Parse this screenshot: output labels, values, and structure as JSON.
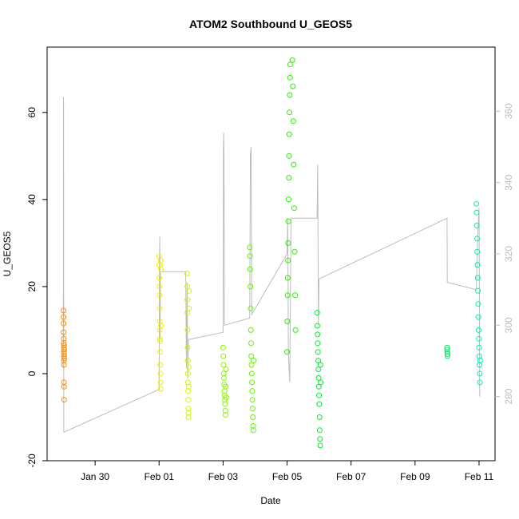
{
  "chart_data": {
    "type": "scatter",
    "title": "ATOM2 Southbound U_GEOS5",
    "xlabel": "Date",
    "ylabel": "U_GEOS5",
    "x_type": "date",
    "xlim": [
      "2017-01-28T12:00",
      "2017-02-11T12:00"
    ],
    "ylim": [
      -20,
      75
    ],
    "y2lim": [
      262,
      378
    ],
    "x_ticks": [
      {
        "date": "2017-01-30T00:00",
        "label": "Jan 30"
      },
      {
        "date": "2017-02-01T00:00",
        "label": "Feb 01"
      },
      {
        "date": "2017-02-03T00:00",
        "label": "Feb 03"
      },
      {
        "date": "2017-02-05T00:00",
        "label": "Feb 05"
      },
      {
        "date": "2017-02-07T00:00",
        "label": "Feb 07"
      },
      {
        "date": "2017-02-09T00:00",
        "label": "Feb 09"
      },
      {
        "date": "2017-02-11T00:00",
        "label": "Feb 11"
      }
    ],
    "y_ticks": [
      -20,
      0,
      20,
      40,
      60
    ],
    "y2_ticks": [
      280,
      300,
      320,
      340,
      360
    ],
    "grid": false,
    "series": [
      {
        "color": "#ff8c00",
        "values": [
          {
            "x": "2017-01-29T00:18",
            "y": 14.5
          },
          {
            "x": "2017-01-29T00:20",
            "y": 13.0
          },
          {
            "x": "2017-01-29T00:22",
            "y": 11.5
          },
          {
            "x": "2017-01-29T00:24",
            "y": 9.5
          },
          {
            "x": "2017-01-29T00:26",
            "y": 8.0
          },
          {
            "x": "2017-01-29T00:28",
            "y": 7.0
          },
          {
            "x": "2017-01-29T00:30",
            "y": 6.0
          },
          {
            "x": "2017-01-29T00:32",
            "y": 5.0
          },
          {
            "x": "2017-01-29T00:34",
            "y": 4.0
          },
          {
            "x": "2017-01-29T00:36",
            "y": 3.0
          },
          {
            "x": "2017-01-29T00:38",
            "y": 2.0
          },
          {
            "x": "2017-01-29T00:40",
            "y": -2.0
          },
          {
            "x": "2017-01-29T00:42",
            "y": -3.0
          },
          {
            "x": "2017-01-29T00:44",
            "y": -6.0
          },
          {
            "x": "2017-01-29T00:46",
            "y": 6.5
          },
          {
            "x": "2017-01-29T00:48",
            "y": 5.5
          },
          {
            "x": "2017-01-29T00:50",
            "y": 4.5
          },
          {
            "x": "2017-01-29T00:52",
            "y": 3.5
          }
        ]
      },
      {
        "color": "#f0f000",
        "values": [
          {
            "x": "2017-02-01T00:00",
            "y": 27.0
          },
          {
            "x": "2017-02-01T00:05",
            "y": 25.0
          },
          {
            "x": "2017-02-01T00:10",
            "y": 22.0
          },
          {
            "x": "2017-02-01T00:15",
            "y": 20.0
          },
          {
            "x": "2017-02-01T00:20",
            "y": 18.0
          },
          {
            "x": "2017-02-01T00:25",
            "y": 15.0
          },
          {
            "x": "2017-02-01T00:30",
            "y": 12.0
          },
          {
            "x": "2017-02-01T00:35",
            "y": 10.0
          },
          {
            "x": "2017-02-01T00:40",
            "y": 8.0
          },
          {
            "x": "2017-02-01T00:45",
            "y": 7.5
          },
          {
            "x": "2017-02-01T00:50",
            "y": 5.0
          },
          {
            "x": "2017-02-01T00:55",
            "y": 2.0
          },
          {
            "x": "2017-02-01T01:00",
            "y": 0.0
          },
          {
            "x": "2017-02-01T01:05",
            "y": -2.0
          },
          {
            "x": "2017-02-01T01:10",
            "y": -3.5
          },
          {
            "x": "2017-02-01T01:15",
            "y": 26.0
          },
          {
            "x": "2017-02-01T01:20",
            "y": 24.0
          },
          {
            "x": "2017-02-01T01:25",
            "y": 11.0
          }
        ]
      },
      {
        "color": "#d4f500",
        "values": [
          {
            "x": "2017-02-01T21:00",
            "y": 23.0
          },
          {
            "x": "2017-02-01T21:05",
            "y": 20.0
          },
          {
            "x": "2017-02-01T21:10",
            "y": 17.0
          },
          {
            "x": "2017-02-01T21:15",
            "y": 14.0
          },
          {
            "x": "2017-02-01T21:20",
            "y": 10.0
          },
          {
            "x": "2017-02-01T21:25",
            "y": 6.0
          },
          {
            "x": "2017-02-01T21:30",
            "y": 3.0
          },
          {
            "x": "2017-02-01T21:35",
            "y": 0.0
          },
          {
            "x": "2017-02-01T21:40",
            "y": -2.0
          },
          {
            "x": "2017-02-01T21:45",
            "y": -4.0
          },
          {
            "x": "2017-02-01T21:50",
            "y": -6.0
          },
          {
            "x": "2017-02-01T21:55",
            "y": -8.0
          },
          {
            "x": "2017-02-01T22:00",
            "y": -9.0
          },
          {
            "x": "2017-02-01T22:05",
            "y": -10.0
          },
          {
            "x": "2017-02-01T22:10",
            "y": 1.5
          },
          {
            "x": "2017-02-01T22:15",
            "y": -3.0
          },
          {
            "x": "2017-02-01T22:20",
            "y": 19.0
          },
          {
            "x": "2017-02-01T22:25",
            "y": 15.0
          }
        ]
      },
      {
        "color": "#8cf500",
        "values": [
          {
            "x": "2017-02-03T00:00",
            "y": 6.0
          },
          {
            "x": "2017-02-03T00:10",
            "y": 4.0
          },
          {
            "x": "2017-02-03T00:20",
            "y": 2.0
          },
          {
            "x": "2017-02-03T00:30",
            "y": 0.0
          },
          {
            "x": "2017-02-03T00:40",
            "y": -1.0
          },
          {
            "x": "2017-02-03T00:50",
            "y": -2.5
          },
          {
            "x": "2017-02-03T01:00",
            "y": -4.0
          },
          {
            "x": "2017-02-03T01:10",
            "y": -5.0
          },
          {
            "x": "2017-02-03T01:20",
            "y": -6.0
          },
          {
            "x": "2017-02-03T01:30",
            "y": -7.0
          },
          {
            "x": "2017-02-03T01:40",
            "y": -8.5
          },
          {
            "x": "2017-02-03T01:50",
            "y": -9.5
          },
          {
            "x": "2017-02-03T02:00",
            "y": -3.0
          },
          {
            "x": "2017-02-03T02:10",
            "y": 1.0
          },
          {
            "x": "2017-02-03T02:20",
            "y": -5.5
          }
        ]
      },
      {
        "color": "#64f500",
        "values": [
          {
            "x": "2017-02-03T20:00",
            "y": 29.0
          },
          {
            "x": "2017-02-03T20:10",
            "y": 27.0
          },
          {
            "x": "2017-02-03T20:20",
            "y": 24.0
          },
          {
            "x": "2017-02-03T20:30",
            "y": 20.0
          },
          {
            "x": "2017-02-03T20:40",
            "y": 15.0
          },
          {
            "x": "2017-02-03T20:50",
            "y": 10.0
          },
          {
            "x": "2017-02-03T21:00",
            "y": 7.0
          },
          {
            "x": "2017-02-03T21:10",
            "y": 4.0
          },
          {
            "x": "2017-02-03T21:20",
            "y": 2.0
          },
          {
            "x": "2017-02-03T21:30",
            "y": 0.0
          },
          {
            "x": "2017-02-03T21:40",
            "y": -2.0
          },
          {
            "x": "2017-02-03T21:50",
            "y": -4.0
          },
          {
            "x": "2017-02-03T22:00",
            "y": -6.0
          },
          {
            "x": "2017-02-03T22:10",
            "y": -8.0
          },
          {
            "x": "2017-02-03T22:20",
            "y": -10.0
          },
          {
            "x": "2017-02-03T22:30",
            "y": -12.0
          },
          {
            "x": "2017-02-03T22:40",
            "y": -13.0
          },
          {
            "x": "2017-02-03T22:50",
            "y": 3.0
          }
        ]
      },
      {
        "color": "#2cf000",
        "values": [
          {
            "x": "2017-02-05T00:00",
            "y": 5.0
          },
          {
            "x": "2017-02-05T00:10",
            "y": 12.0
          },
          {
            "x": "2017-02-05T00:20",
            "y": 18.0
          },
          {
            "x": "2017-02-05T00:30",
            "y": 22.0
          },
          {
            "x": "2017-02-05T00:40",
            "y": 26.0
          },
          {
            "x": "2017-02-05T00:50",
            "y": 30.0
          },
          {
            "x": "2017-02-05T01:00",
            "y": 35.0
          },
          {
            "x": "2017-02-05T01:10",
            "y": 40.0
          },
          {
            "x": "2017-02-05T01:20",
            "y": 45.0
          },
          {
            "x": "2017-02-05T01:30",
            "y": 50.0
          },
          {
            "x": "2017-02-05T01:40",
            "y": 55.0
          },
          {
            "x": "2017-02-05T01:50",
            "y": 60.0
          },
          {
            "x": "2017-02-05T02:00",
            "y": 64.0
          },
          {
            "x": "2017-02-05T02:10",
            "y": 68.0
          },
          {
            "x": "2017-02-05T02:20",
            "y": 71.0
          },
          {
            "x": "2017-02-05T04:00",
            "y": 72.0
          },
          {
            "x": "2017-02-05T04:20",
            "y": 66.0
          },
          {
            "x": "2017-02-05T04:40",
            "y": 58.0
          },
          {
            "x": "2017-02-05T05:00",
            "y": 48.0
          },
          {
            "x": "2017-02-05T05:20",
            "y": 38.0
          },
          {
            "x": "2017-02-05T05:40",
            "y": 28.0
          },
          {
            "x": "2017-02-05T06:00",
            "y": 18.0
          },
          {
            "x": "2017-02-05T06:20",
            "y": 10.0
          }
        ]
      },
      {
        "color": "#00f028",
        "values": [
          {
            "x": "2017-02-05T22:30",
            "y": 14.0
          },
          {
            "x": "2017-02-05T22:40",
            "y": 11.0
          },
          {
            "x": "2017-02-05T22:50",
            "y": 9.0
          },
          {
            "x": "2017-02-05T23:00",
            "y": 7.0
          },
          {
            "x": "2017-02-05T23:10",
            "y": 5.0
          },
          {
            "x": "2017-02-05T23:20",
            "y": 3.0
          },
          {
            "x": "2017-02-05T23:30",
            "y": 1.0
          },
          {
            "x": "2017-02-05T23:40",
            "y": -1.0
          },
          {
            "x": "2017-02-05T23:50",
            "y": -3.0
          },
          {
            "x": "2017-02-06T00:00",
            "y": -5.0
          },
          {
            "x": "2017-02-06T00:10",
            "y": -7.0
          },
          {
            "x": "2017-02-06T00:20",
            "y": -10.0
          },
          {
            "x": "2017-02-06T00:30",
            "y": -13.0
          },
          {
            "x": "2017-02-06T00:40",
            "y": -15.0
          },
          {
            "x": "2017-02-06T00:50",
            "y": -16.5
          },
          {
            "x": "2017-02-06T01:00",
            "y": 2.0
          },
          {
            "x": "2017-02-06T01:10",
            "y": -2.0
          }
        ]
      },
      {
        "color": "#00f064",
        "values": [
          {
            "x": "2017-02-10T00:00",
            "y": 6.0
          },
          {
            "x": "2017-02-10T00:05",
            "y": 5.5
          },
          {
            "x": "2017-02-10T00:10",
            "y": 5.0
          },
          {
            "x": "2017-02-10T00:15",
            "y": 4.5
          },
          {
            "x": "2017-02-10T00:20",
            "y": 4.0
          }
        ]
      },
      {
        "color": "#00f0b4",
        "values": [
          {
            "x": "2017-02-10T22:00",
            "y": 39.0
          },
          {
            "x": "2017-02-10T22:10",
            "y": 37.0
          },
          {
            "x": "2017-02-10T22:20",
            "y": 34.0
          },
          {
            "x": "2017-02-10T22:30",
            "y": 31.0
          },
          {
            "x": "2017-02-10T22:40",
            "y": 28.0
          },
          {
            "x": "2017-02-10T22:50",
            "y": 25.0
          },
          {
            "x": "2017-02-10T23:00",
            "y": 22.0
          },
          {
            "x": "2017-02-10T23:10",
            "y": 19.0
          },
          {
            "x": "2017-02-10T23:20",
            "y": 16.0
          },
          {
            "x": "2017-02-10T23:30",
            "y": 13.0
          },
          {
            "x": "2017-02-10T23:40",
            "y": 10.0
          },
          {
            "x": "2017-02-10T23:50",
            "y": 8.0
          },
          {
            "x": "2017-02-11T00:00",
            "y": 6.0
          },
          {
            "x": "2017-02-11T00:10",
            "y": 4.0
          },
          {
            "x": "2017-02-11T00:20",
            "y": 2.0
          },
          {
            "x": "2017-02-11T00:30",
            "y": 0.0
          },
          {
            "x": "2017-02-11T00:40",
            "y": -2.0
          },
          {
            "x": "2017-02-11T00:50",
            "y": 3.0
          }
        ]
      }
    ],
    "secondary_line": {
      "color": "#bdbdbd",
      "values": [
        {
          "x": "2017-01-29T00:10",
          "y2": 288
        },
        {
          "x": "2017-01-29T00:15",
          "y2": 364
        },
        {
          "x": "2017-01-29T00:20",
          "y2": 360
        },
        {
          "x": "2017-01-29T00:30",
          "y2": 270
        },
        {
          "x": "2017-02-01T00:00",
          "y2": 282
        },
        {
          "x": "2017-02-01T00:15",
          "y2": 318
        },
        {
          "x": "2017-02-01T00:30",
          "y2": 325
        },
        {
          "x": "2017-02-01T00:45",
          "y2": 296
        },
        {
          "x": "2017-02-01T01:00",
          "y2": 315
        },
        {
          "x": "2017-02-01T20:00",
          "y2": 315
        },
        {
          "x": "2017-02-01T20:30",
          "y2": 288
        },
        {
          "x": "2017-02-01T21:00",
          "y2": 312
        },
        {
          "x": "2017-02-01T21:30",
          "y2": 285
        },
        {
          "x": "2017-02-01T22:00",
          "y2": 296
        },
        {
          "x": "2017-02-03T00:00",
          "y2": 298
        },
        {
          "x": "2017-02-03T00:15",
          "y2": 350
        },
        {
          "x": "2017-02-03T00:30",
          "y2": 354
        },
        {
          "x": "2017-02-03T00:45",
          "y2": 344
        },
        {
          "x": "2017-02-03T01:00",
          "y2": 300
        },
        {
          "x": "2017-02-03T20:00",
          "y2": 302
        },
        {
          "x": "2017-02-03T20:30",
          "y2": 348
        },
        {
          "x": "2017-02-03T21:00",
          "y2": 350
        },
        {
          "x": "2017-02-03T21:30",
          "y2": 303
        },
        {
          "x": "2017-02-05T00:00",
          "y2": 320
        },
        {
          "x": "2017-02-05T00:30",
          "y2": 330
        },
        {
          "x": "2017-02-05T01:00",
          "y2": 292
        },
        {
          "x": "2017-02-05T02:00",
          "y2": 284
        },
        {
          "x": "2017-02-05T03:00",
          "y2": 330
        },
        {
          "x": "2017-02-05T22:30",
          "y2": 330
        },
        {
          "x": "2017-02-05T23:00",
          "y2": 345
        },
        {
          "x": "2017-02-05T23:30",
          "y2": 300
        },
        {
          "x": "2017-02-06T00:00",
          "y2": 313
        },
        {
          "x": "2017-02-10T00:00",
          "y2": 330
        },
        {
          "x": "2017-02-10T00:10",
          "y2": 312
        },
        {
          "x": "2017-02-10T22:00",
          "y2": 310
        },
        {
          "x": "2017-02-10T23:00",
          "y2": 325
        },
        {
          "x": "2017-02-11T00:00",
          "y2": 333
        },
        {
          "x": "2017-02-11T00:30",
          "y2": 280
        }
      ]
    }
  }
}
